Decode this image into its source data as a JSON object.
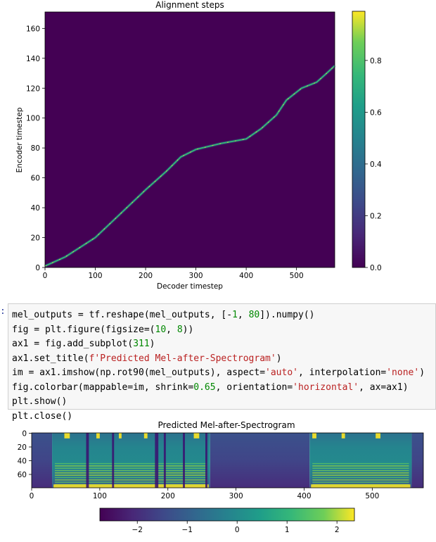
{
  "notebook": {
    "prompt": ":",
    "code_lines": [
      [
        {
          "t": "mel_outputs = tf.reshape(mel_outputs, [-"
        },
        {
          "t": "1",
          "c": "num"
        },
        {
          "t": ", "
        },
        {
          "t": "80",
          "c": "num"
        },
        {
          "t": "]).numpy()"
        }
      ],
      [
        {
          "t": "fig = plt.figure(figsize=("
        },
        {
          "t": "10",
          "c": "num"
        },
        {
          "t": ", "
        },
        {
          "t": "8",
          "c": "num"
        },
        {
          "t": "))"
        }
      ],
      [
        {
          "t": "ax1 = fig.add_subplot("
        },
        {
          "t": "311",
          "c": "num"
        },
        {
          "t": ")"
        }
      ],
      [
        {
          "t": "ax1.set_title("
        },
        {
          "t": "f'Predicted Mel-after-Spectrogram'",
          "c": "str"
        },
        {
          "t": ")"
        }
      ],
      [
        {
          "t": "im = ax1.imshow(np.rot90(mel_outputs), aspect="
        },
        {
          "t": "'auto'",
          "c": "str"
        },
        {
          "t": ", interpolation="
        },
        {
          "t": "'none'",
          "c": "str"
        },
        {
          "t": ")"
        }
      ],
      [
        {
          "t": "fig.colorbar(mappable=im, shrink="
        },
        {
          "t": "0.65",
          "c": "num"
        },
        {
          "t": ", orientation="
        },
        {
          "t": "'horizontal'",
          "c": "str"
        },
        {
          "t": ", ax=ax1)"
        }
      ],
      [
        {
          "t": "plt.show()"
        }
      ],
      [
        {
          "t": "plt.close()"
        }
      ]
    ]
  },
  "chart_data": [
    {
      "type": "heatmap",
      "title": "Alignment steps",
      "xlabel": "Decoder timestep",
      "ylabel": "Encoder timestep",
      "xlim": [
        0,
        576
      ],
      "ylim": [
        0,
        171
      ],
      "xticks": [
        0,
        100,
        200,
        300,
        400,
        500
      ],
      "yticks": [
        0,
        20,
        40,
        60,
        80,
        100,
        120,
        140,
        160
      ],
      "colormap": "viridis",
      "colorbar": {
        "orientation": "vertical",
        "range": [
          0,
          0.99
        ],
        "ticks": [
          0.0,
          0.2,
          0.4,
          0.6,
          0.8
        ],
        "tick_labels": [
          "0.0",
          "0.2",
          "0.4",
          "0.6",
          "0.8"
        ]
      },
      "alignment_path": [
        [
          0,
          1
        ],
        [
          40,
          7
        ],
        [
          100,
          20
        ],
        [
          150,
          36
        ],
        [
          200,
          52
        ],
        [
          240,
          64
        ],
        [
          270,
          74
        ],
        [
          300,
          79
        ],
        [
          350,
          83
        ],
        [
          400,
          86
        ],
        [
          430,
          93
        ],
        [
          460,
          102
        ],
        [
          480,
          112
        ],
        [
          510,
          120
        ],
        [
          540,
          124
        ],
        [
          560,
          130
        ],
        [
          576,
          135
        ]
      ],
      "background_color": "#440154",
      "path_colors": [
        "#35b779",
        "#fde725"
      ]
    },
    {
      "type": "heatmap",
      "title": "Predicted Mel-after-Spectrogram",
      "xlim": [
        0,
        575
      ],
      "ylim": [
        80,
        0
      ],
      "xticks": [
        0,
        100,
        200,
        300,
        400,
        500
      ],
      "yticks": [
        0,
        20,
        40,
        60
      ],
      "colormap": "viridis",
      "colorbar": {
        "orientation": "horizontal",
        "range": [
          -2.75,
          2.35
        ],
        "ticks": [
          -2,
          -1,
          0,
          1,
          2
        ],
        "tick_labels": [
          "−2",
          "−1",
          "0",
          "1",
          "2"
        ]
      },
      "silence_segments": [
        [
          0,
          30
        ],
        [
          262,
          408
        ],
        [
          558,
          575
        ]
      ],
      "speech_segments": [
        [
          30,
          262
        ],
        [
          408,
          558
        ]
      ]
    }
  ]
}
